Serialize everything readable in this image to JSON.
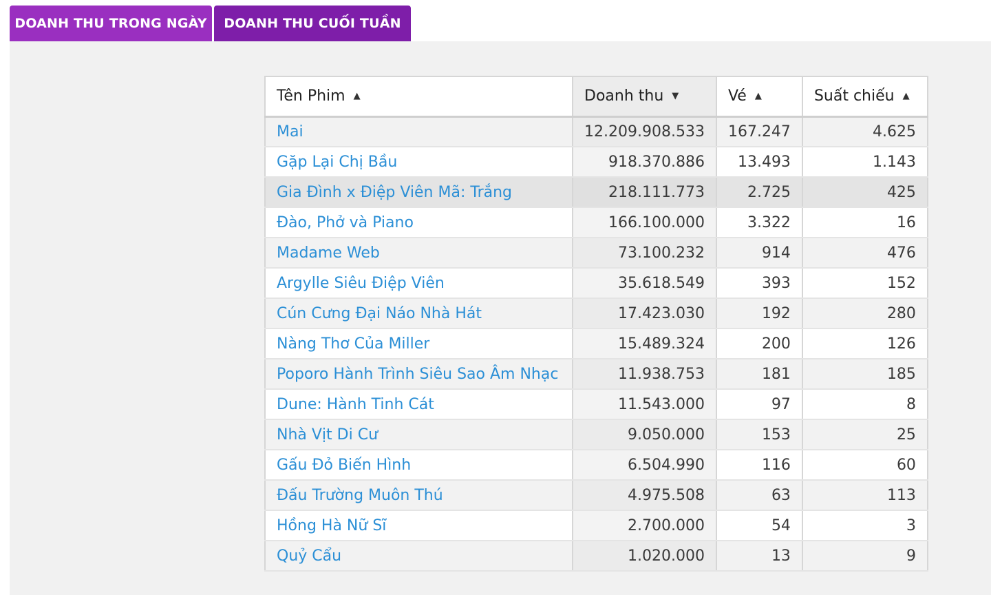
{
  "tabs": [
    {
      "label": "DOANH THU TRONG NGÀY"
    },
    {
      "label": "DOANH THU CUỐI TUẦN"
    }
  ],
  "table": {
    "columns": [
      {
        "label": "Tên Phim",
        "sort": "asc"
      },
      {
        "label": "Doanh thu",
        "sort": "desc"
      },
      {
        "label": "Vé",
        "sort": "asc"
      },
      {
        "label": "Suất chiếu",
        "sort": "asc"
      }
    ],
    "sort_icons": {
      "asc": "▲",
      "desc": "▼"
    },
    "rows": [
      {
        "title": "Mai",
        "revenue": "12.209.908.533",
        "tickets": "167.247",
        "shows": "4.625"
      },
      {
        "title": "Gặp Lại Chị Bầu",
        "revenue": "918.370.886",
        "tickets": "13.493",
        "shows": "1.143"
      },
      {
        "title": "Gia Đình x Điệp Viên Mã: Trắng",
        "revenue": "218.111.773",
        "tickets": "2.725",
        "shows": "425"
      },
      {
        "title": "Đào, Phở và Piano",
        "revenue": "166.100.000",
        "tickets": "3.322",
        "shows": "16"
      },
      {
        "title": "Madame Web",
        "revenue": "73.100.232",
        "tickets": "914",
        "shows": "476"
      },
      {
        "title": "Argylle Siêu Điệp Viên",
        "revenue": "35.618.549",
        "tickets": "393",
        "shows": "152"
      },
      {
        "title": "Cún Cưng Đại Náo Nhà Hát",
        "revenue": "17.423.030",
        "tickets": "192",
        "shows": "280"
      },
      {
        "title": "Nàng Thơ Của Miller",
        "revenue": "15.489.324",
        "tickets": "200",
        "shows": "126"
      },
      {
        "title": "Poporo Hành Trình Siêu Sao Âm Nhạc",
        "revenue": "11.938.753",
        "tickets": "181",
        "shows": "185"
      },
      {
        "title": "Dune: Hành Tinh Cát",
        "revenue": "11.543.000",
        "tickets": "97",
        "shows": "8"
      },
      {
        "title": "Nhà Vịt Di Cư",
        "revenue": "9.050.000",
        "tickets": "153",
        "shows": "25"
      },
      {
        "title": "Gấu Đỏ Biến Hình",
        "revenue": "6.504.990",
        "tickets": "116",
        "shows": "60"
      },
      {
        "title": "Đấu Trường Muôn Thú",
        "revenue": "4.975.508",
        "tickets": "63",
        "shows": "113"
      },
      {
        "title": "Hồng Hà Nữ Sĩ",
        "revenue": "2.700.000",
        "tickets": "54",
        "shows": "3"
      },
      {
        "title": "Quỷ Cẩu",
        "revenue": "1.020.000",
        "tickets": "13",
        "shows": "9"
      }
    ]
  }
}
